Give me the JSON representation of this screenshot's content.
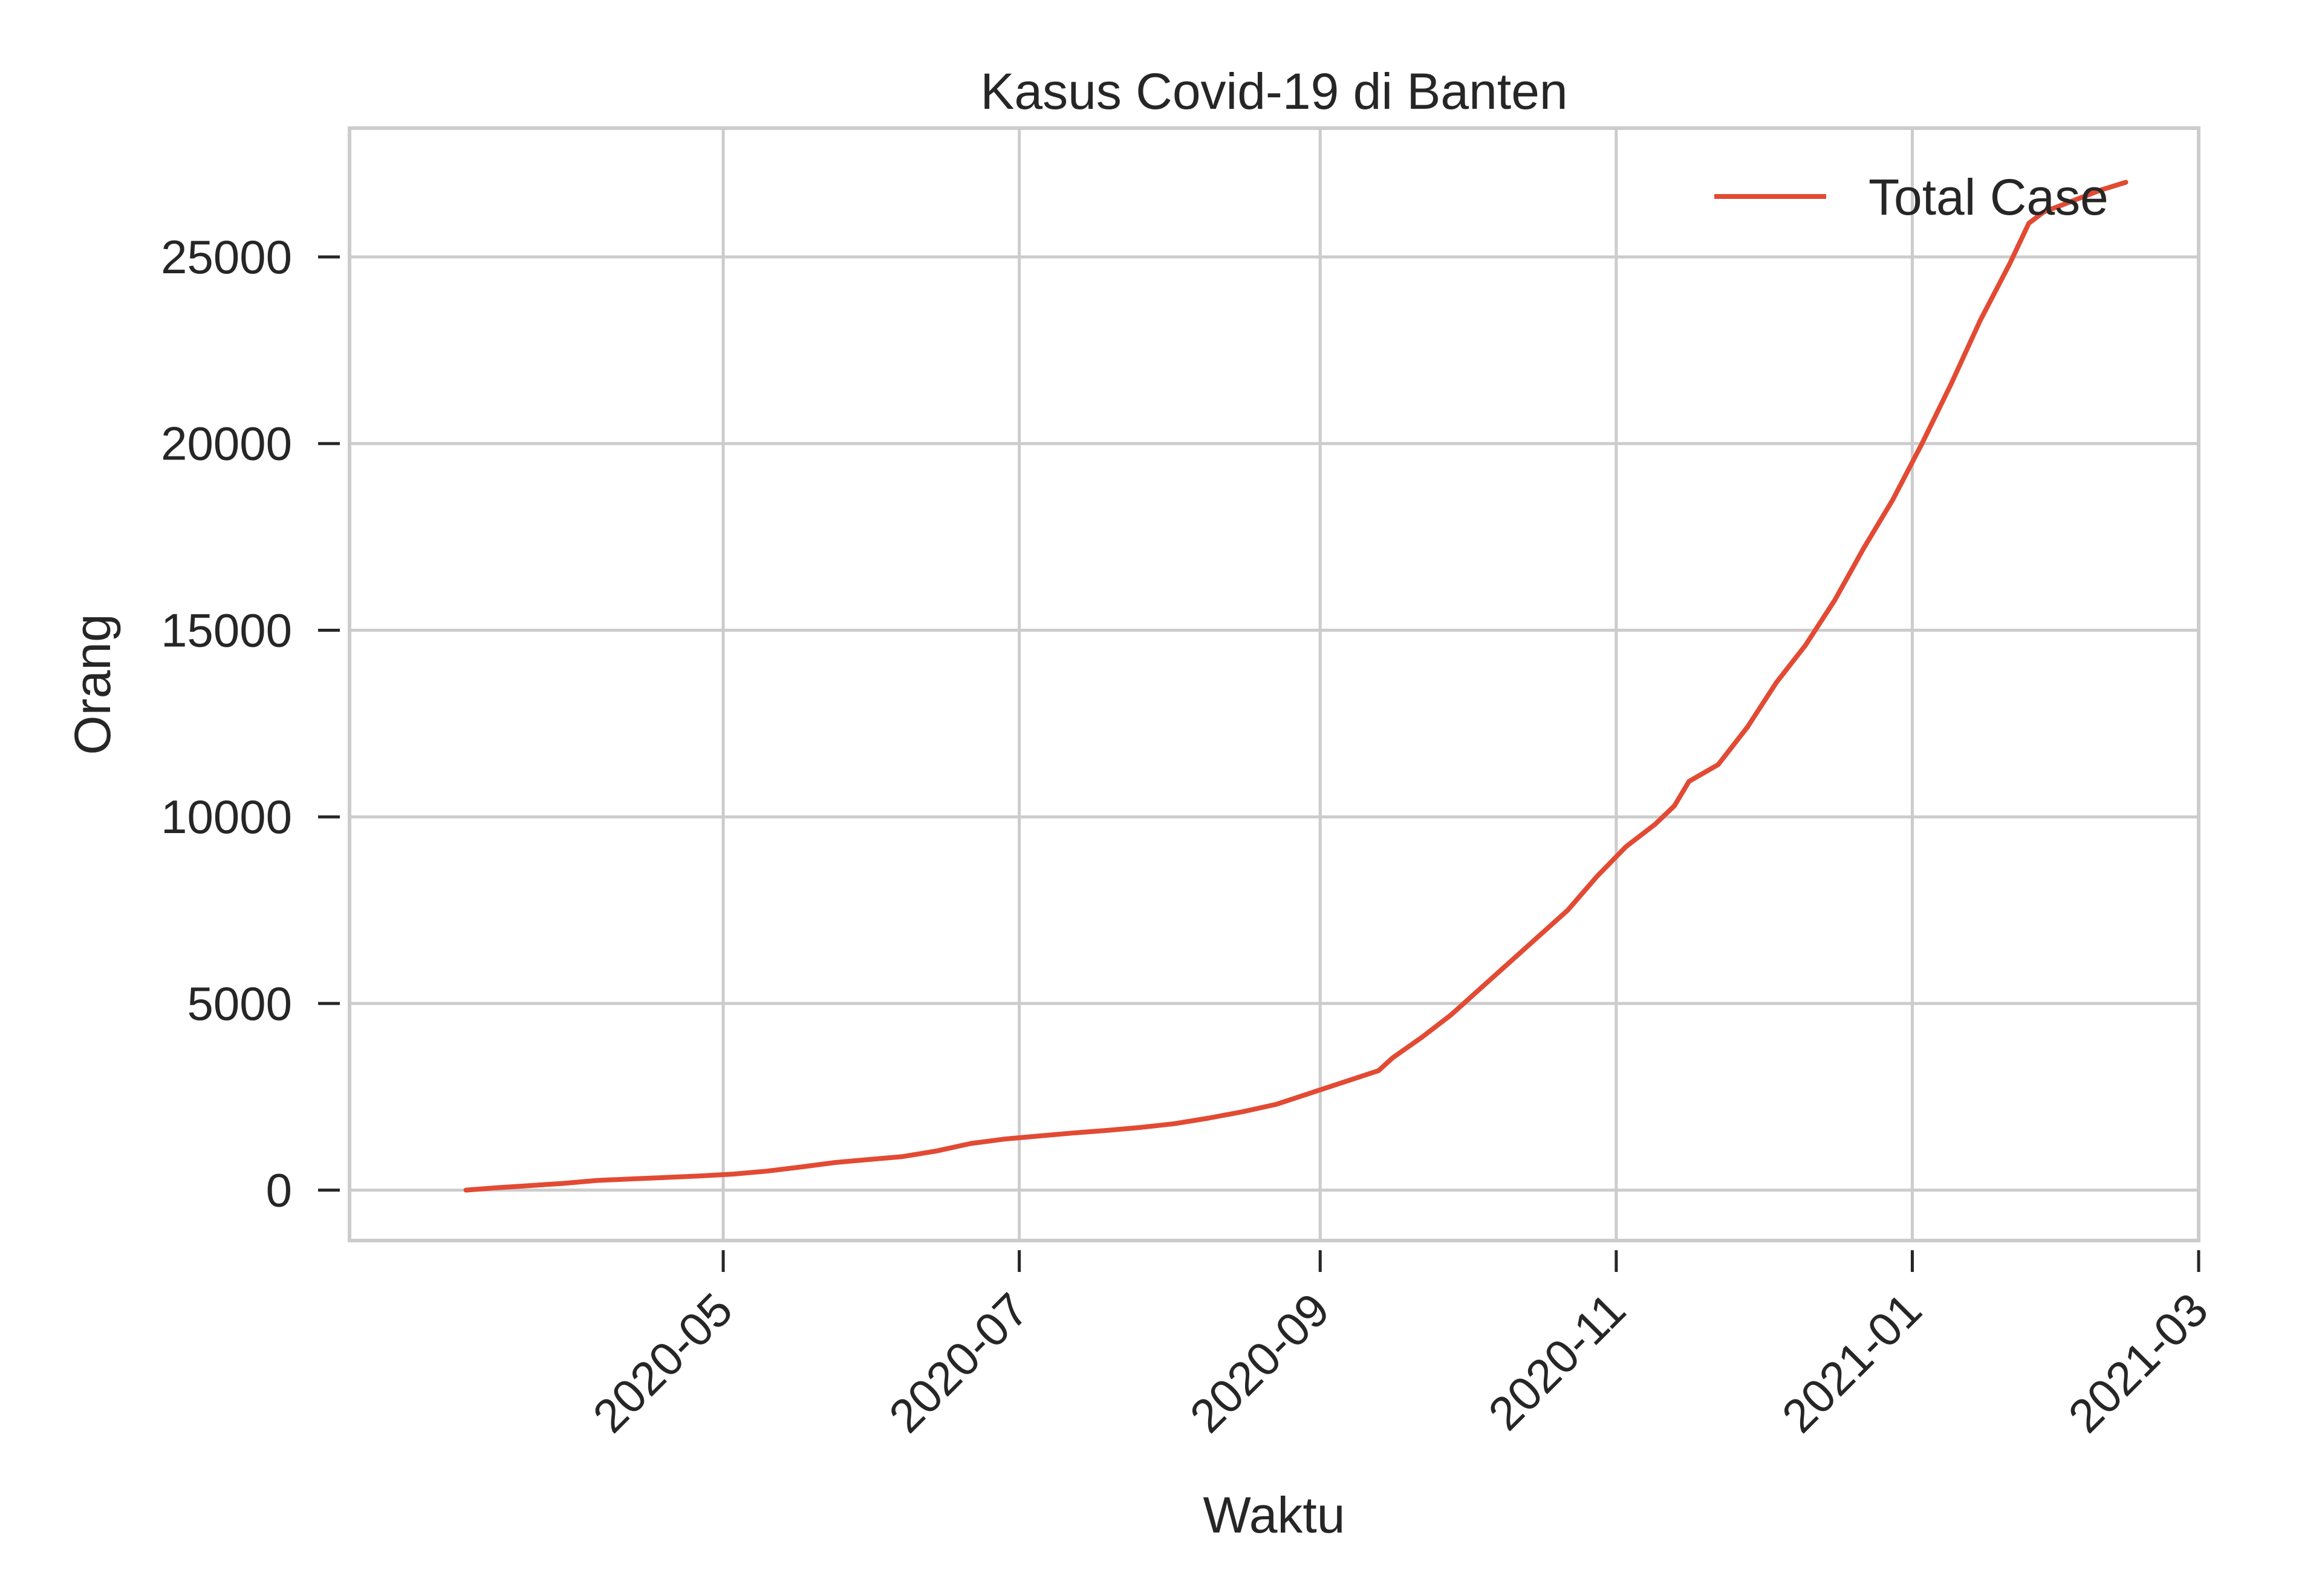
{
  "chart_data": {
    "type": "line",
    "title": "Kasus Covid-19 di Banten",
    "xlabel": "Waktu",
    "ylabel": "Orang",
    "xlim": [
      "2020-02-14",
      "2021-03-01"
    ],
    "ylim": [
      -1350,
      28450
    ],
    "x_ticks": [
      "2020-05",
      "2020-07",
      "2020-09",
      "2020-11",
      "2021-01",
      "2021-03"
    ],
    "y_ticks": [
      0,
      5000,
      10000,
      15000,
      20000,
      25000
    ],
    "grid": true,
    "legend": {
      "position": "top-right",
      "entries": [
        "Total Case"
      ]
    },
    "series": [
      {
        "name": "Total Case",
        "color": "#e24a33",
        "x": [
          "2020-03-09",
          "2020-03-15",
          "2020-03-22",
          "2020-03-29",
          "2020-04-05",
          "2020-04-12",
          "2020-04-19",
          "2020-04-26",
          "2020-05-03",
          "2020-05-10",
          "2020-05-17",
          "2020-05-24",
          "2020-05-31",
          "2020-06-07",
          "2020-06-14",
          "2020-06-21",
          "2020-06-28",
          "2020-07-05",
          "2020-07-12",
          "2020-07-19",
          "2020-07-26",
          "2020-08-02",
          "2020-08-09",
          "2020-08-16",
          "2020-08-23",
          "2020-08-30",
          "2020-09-06",
          "2020-09-13",
          "2020-09-16",
          "2020-09-22",
          "2020-09-28",
          "2020-10-04",
          "2020-10-10",
          "2020-10-16",
          "2020-10-22",
          "2020-10-28",
          "2020-11-03",
          "2020-11-09",
          "2020-11-13",
          "2020-11-16",
          "2020-11-22",
          "2020-11-28",
          "2020-12-04",
          "2020-12-10",
          "2020-12-16",
          "2020-12-22",
          "2020-12-28",
          "2021-01-03",
          "2021-01-09",
          "2021-01-15",
          "2021-01-21",
          "2021-01-25",
          "2021-01-28",
          "2021-02-01",
          "2021-02-05",
          "2021-02-09",
          "2021-02-14"
        ],
        "y": [
          0,
          60,
          120,
          180,
          260,
          300,
          340,
          380,
          430,
          510,
          620,
          740,
          820,
          900,
          1050,
          1250,
          1370,
          1450,
          1530,
          1600,
          1680,
          1780,
          1930,
          2100,
          2300,
          2600,
          2900,
          3200,
          3550,
          4100,
          4700,
          5400,
          6100,
          6800,
          7500,
          8400,
          9200,
          9800,
          10300,
          10950,
          11400,
          12400,
          13600,
          14600,
          15800,
          17200,
          18500,
          20000,
          21600,
          23300,
          24800,
          25900,
          26200,
          26400,
          26600,
          26800,
          27000
        ]
      }
    ]
  }
}
